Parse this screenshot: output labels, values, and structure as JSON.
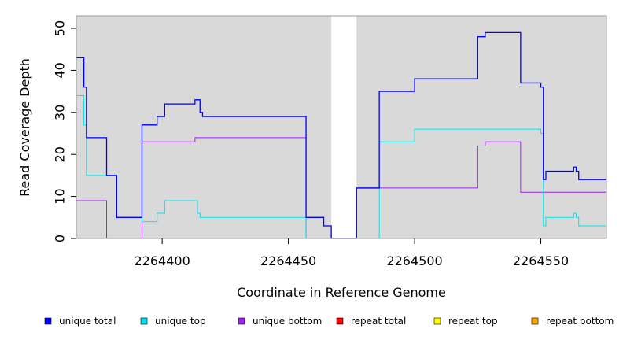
{
  "chart_data": {
    "type": "line",
    "title": "",
    "xlabel": "Coordinate in Reference Genome",
    "ylabel": "Read Coverage Depth",
    "xlim": [
      2264366,
      2264576
    ],
    "ylim": [
      0,
      53
    ],
    "x_ticks": [
      2264400,
      2264450,
      2264500,
      2264550
    ],
    "x_tick_labels": [
      "2264400",
      "2264450",
      "2264500",
      "2264550"
    ],
    "y_ticks": [
      0,
      10,
      20,
      30,
      40,
      50
    ],
    "y_tick_labels": [
      "0",
      "10",
      "20",
      "30",
      "40",
      "50"
    ],
    "grid": false,
    "plot_background": "#d9d9d9",
    "gap_regions": [
      [
        2264467,
        2264477
      ]
    ],
    "legend_position": "bottom",
    "series": [
      {
        "name": "unique total",
        "color": "#0000ff",
        "steps": [
          [
            2264366,
            43
          ],
          [
            2264369,
            36
          ],
          [
            2264370,
            24
          ],
          [
            2264378,
            15
          ],
          [
            2264382,
            5
          ],
          [
            2264392,
            27
          ],
          [
            2264398,
            29
          ],
          [
            2264401,
            32
          ],
          [
            2264413,
            33
          ],
          [
            2264415,
            30
          ],
          [
            2264416,
            29
          ],
          [
            2264457,
            5
          ],
          [
            2264464,
            3
          ],
          [
            2264467,
            0
          ],
          [
            2264477,
            12
          ],
          [
            2264486,
            35
          ],
          [
            2264500,
            38
          ],
          [
            2264525,
            48
          ],
          [
            2264528,
            49
          ],
          [
            2264542,
            37
          ],
          [
            2264550,
            36
          ],
          [
            2264551,
            14
          ],
          [
            2264552,
            16
          ],
          [
            2264563,
            17
          ],
          [
            2264564,
            16
          ],
          [
            2264565,
            14
          ],
          [
            2264576,
            14
          ]
        ]
      },
      {
        "name": "unique top",
        "color": "#00e5ee",
        "steps": [
          [
            2264366,
            34
          ],
          [
            2264369,
            27
          ],
          [
            2264370,
            15
          ],
          [
            2264382,
            5
          ],
          [
            2264392,
            4
          ],
          [
            2264398,
            6
          ],
          [
            2264401,
            9
          ],
          [
            2264414,
            6
          ],
          [
            2264415,
            5
          ],
          [
            2264457,
            0
          ],
          [
            2264486,
            23
          ],
          [
            2264500,
            26
          ],
          [
            2264550,
            25
          ],
          [
            2264551,
            3
          ],
          [
            2264552,
            5
          ],
          [
            2264563,
            6
          ],
          [
            2264564,
            5
          ],
          [
            2264565,
            3
          ],
          [
            2264576,
            3
          ]
        ]
      },
      {
        "name": "unique bottom",
        "color": "#a020f0",
        "steps": [
          [
            2264366,
            9
          ],
          [
            2264378,
            0
          ],
          [
            2264392,
            23
          ],
          [
            2264413,
            24
          ],
          [
            2264457,
            0
          ],
          [
            2264477,
            12
          ],
          [
            2264525,
            22
          ],
          [
            2264528,
            23
          ],
          [
            2264542,
            11
          ],
          [
            2264576,
            11
          ]
        ]
      },
      {
        "name": "repeat total",
        "color": "#ff0000",
        "steps": [
          [
            2264366,
            0
          ],
          [
            2264576,
            0
          ]
        ]
      },
      {
        "name": "repeat top",
        "color": "#ffff00",
        "steps": [
          [
            2264366,
            0
          ],
          [
            2264576,
            0
          ]
        ]
      },
      {
        "name": "repeat bottom",
        "color": "#ffa500",
        "steps": [
          [
            2264366,
            0
          ],
          [
            2264576,
            0
          ]
        ]
      }
    ]
  }
}
